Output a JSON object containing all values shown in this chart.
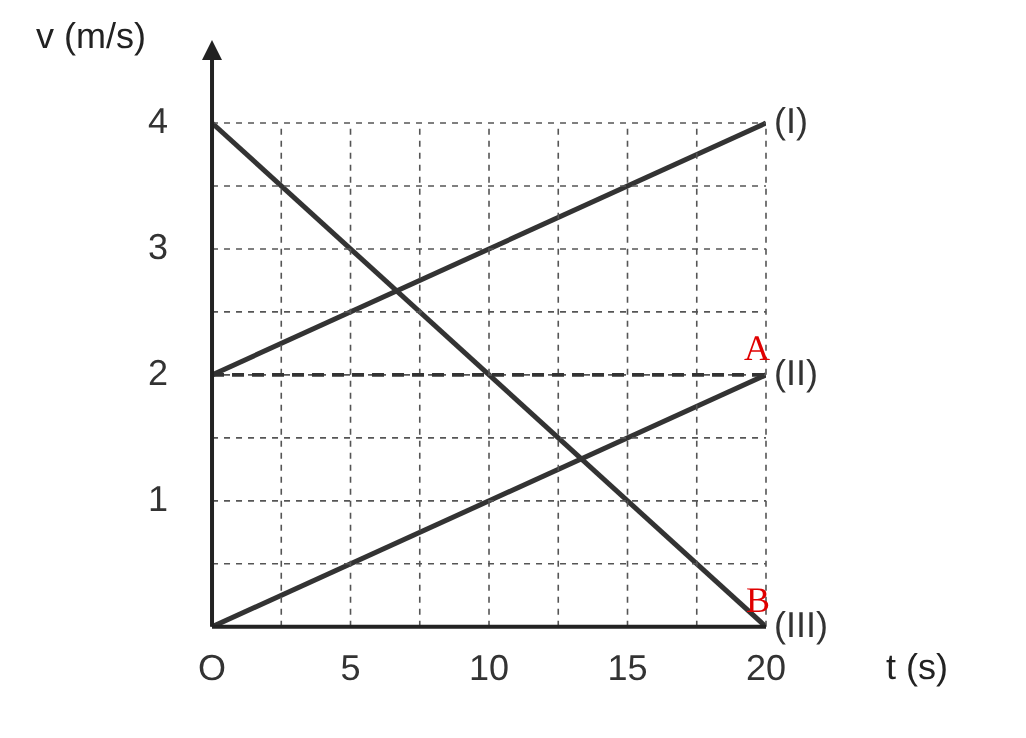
{
  "chart_data": {
    "type": "line",
    "xlabel": "t (s)",
    "ylabel": "v (m/s)",
    "x": [
      0,
      20
    ],
    "series": [
      {
        "name": "(I)",
        "color": "#333333",
        "values": [
          2,
          4
        ]
      },
      {
        "name": "(II)",
        "color": "#333333",
        "values": [
          0,
          2
        ]
      },
      {
        "name": "(III)",
        "color": "#333333",
        "values": [
          4,
          0
        ]
      }
    ],
    "xlim": [
      0,
      20
    ],
    "xticks": [
      {
        "value": 0,
        "label": "O"
      },
      {
        "value": 2.5,
        "label": null
      },
      5,
      {
        "value": 7.5,
        "label": null
      },
      10,
      {
        "value": 12.5,
        "label": null
      },
      15,
      {
        "value": 17.5,
        "label": null
      },
      20
    ],
    "ylim": [
      0,
      4.5
    ],
    "yticks": [
      {
        "value": 0,
        "label": null
      },
      {
        "value": 0.5,
        "label": null
      },
      1,
      {
        "value": 1.5,
        "label": null
      },
      2,
      {
        "value": 2.5,
        "label": null
      },
      3,
      {
        "value": 3.5,
        "label": null
      },
      4
    ],
    "grid": true,
    "line_style": "solid",
    "marker": "none",
    "legend": false,
    "ref_lines": [
      {
        "axis": "y",
        "value": 2,
        "line_style": "dashed",
        "color": "#333333"
      }
    ],
    "annotations": [
      {
        "text": "A",
        "x": 20,
        "y": 2
      },
      {
        "text": "B",
        "x": 20,
        "y": 0
      }
    ]
  }
}
